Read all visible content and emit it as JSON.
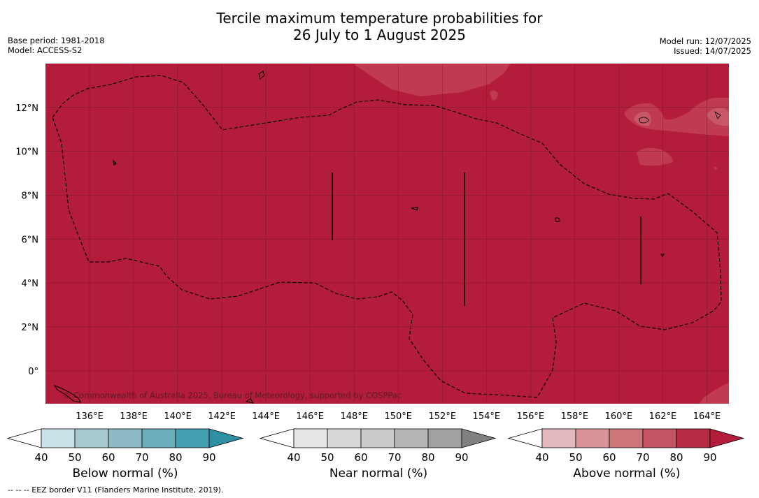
{
  "title_line1": "Tercile maximum temperature probabilities for",
  "title_line2": "26 July to 1 August 2025",
  "meta_left": [
    "Base period: 1981-2018",
    "Model: ACCESS-S2"
  ],
  "meta_right": [
    "Model run: 12/07/2025",
    "Issued: 14/07/2025"
  ],
  "map": {
    "lon_ticks": [
      "136°E",
      "138°E",
      "140°E",
      "142°E",
      "144°E",
      "146°E",
      "148°E",
      "150°E",
      "152°E",
      "154°E",
      "156°E",
      "158°E",
      "160°E",
      "162°E",
      "164°E"
    ],
    "lat_ticks": [
      "12°N",
      "10°N",
      "8°N",
      "6°N",
      "4°N",
      "2°N",
      "0°"
    ],
    "lon_range": [
      134.0,
      165.0
    ],
    "lat_range": [
      -1.5,
      14.0
    ],
    "fill_color": "#b31c3b",
    "copyright": "© Commonwealth of Australia 2025, Bureau of Meteorology, supported by COSPPac"
  },
  "colorbars": [
    {
      "label": "Below normal (%)",
      "ticks": [
        "40",
        "50",
        "60",
        "70",
        "80",
        "90"
      ],
      "colors": [
        "#c9e3e9",
        "#a8c8cf",
        "#8db9c4",
        "#6badbb",
        "#45a0b1",
        "#2f8fa3"
      ]
    },
    {
      "label": "Near normal (%)",
      "ticks": [
        "40",
        "50",
        "60",
        "70",
        "80",
        "90"
      ],
      "colors": [
        "#e6e6e6",
        "#d7d7d7",
        "#cacaca",
        "#b5b5b5",
        "#a1a1a1",
        "#808080"
      ]
    },
    {
      "label": "Above normal (%)",
      "ticks": [
        "40",
        "50",
        "60",
        "70",
        "80",
        "90"
      ],
      "colors": [
        "#e3b9bf",
        "#d89498",
        "#cd7679",
        "#c45462",
        "#b52c43",
        "#b31c3b"
      ]
    }
  ],
  "footer": "--  --  -- EEZ border V11 (Flanders Marine Institute, 2019)."
}
